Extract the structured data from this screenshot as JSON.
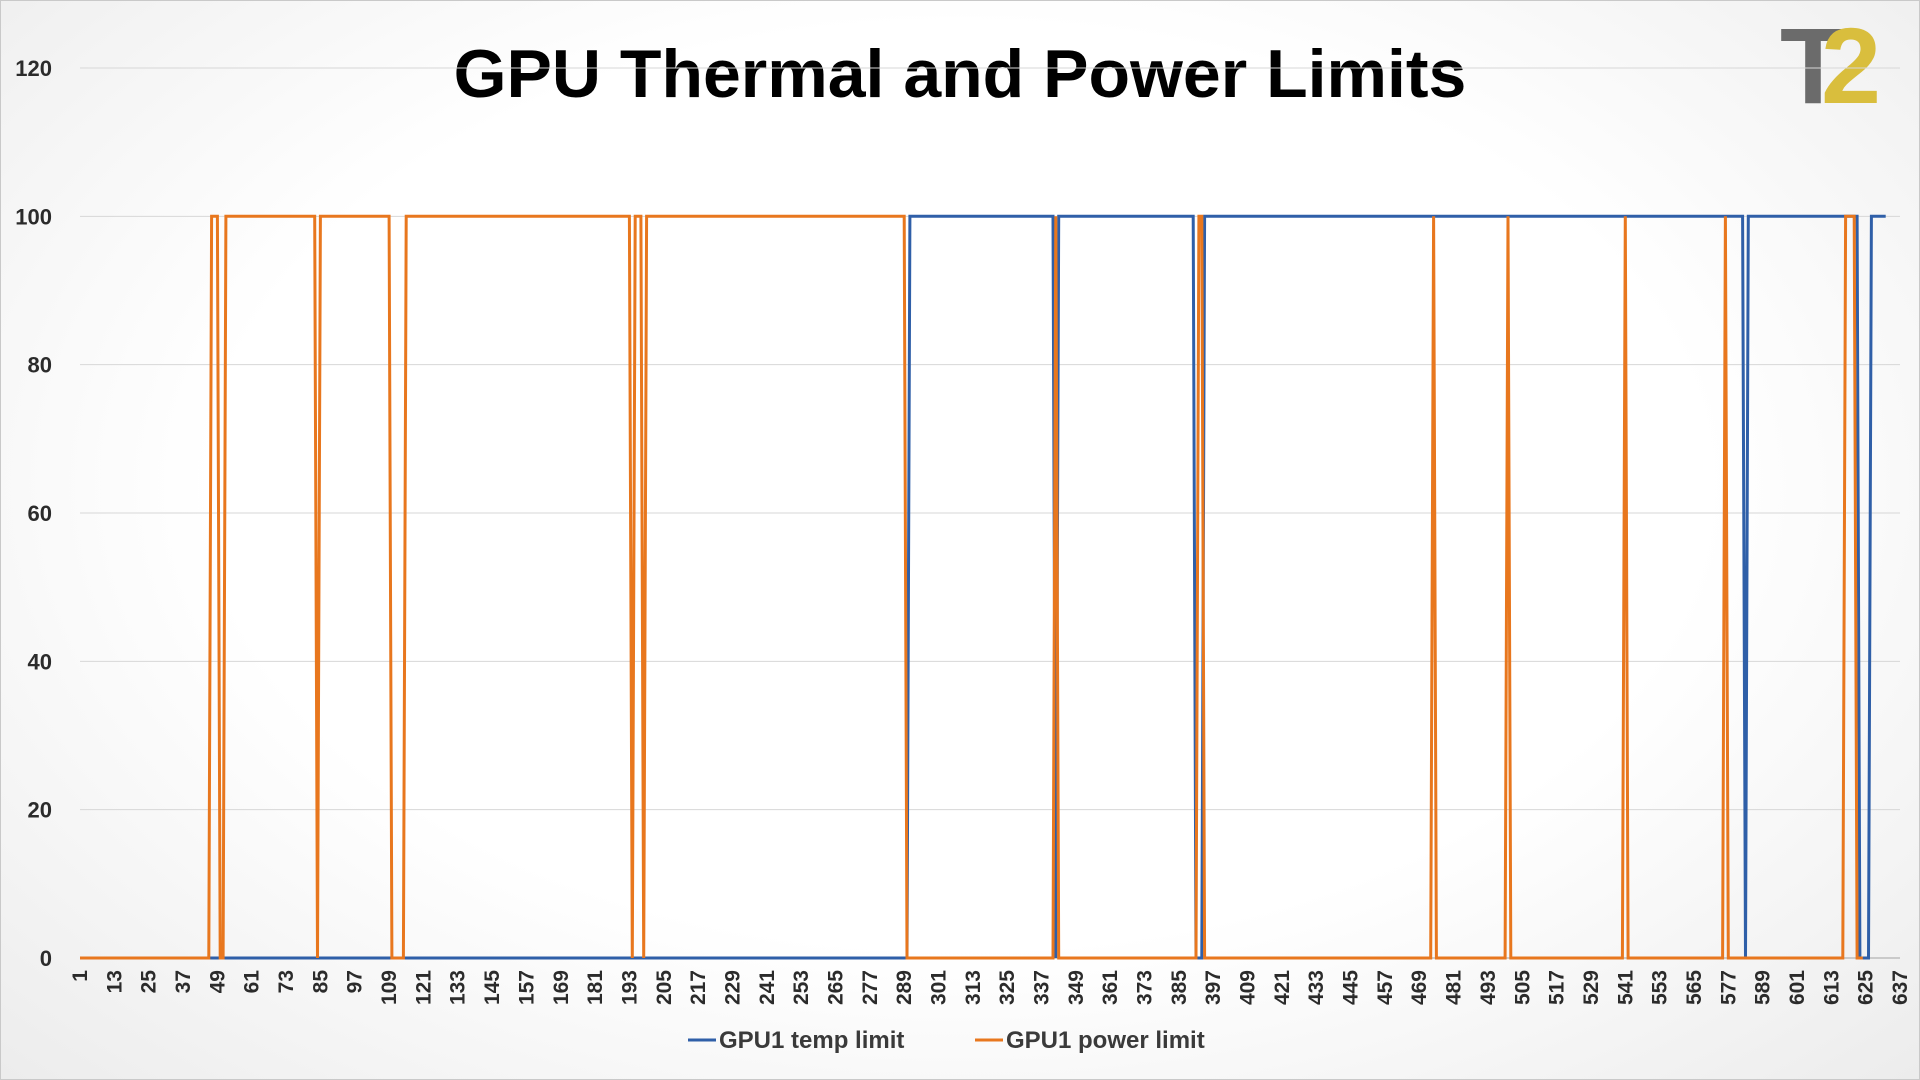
{
  "chart_data": {
    "type": "line",
    "title": "GPU Thermal and Power Limits",
    "xlabel": "",
    "ylabel": "",
    "ylim": [
      0,
      120
    ],
    "yticks": [
      0,
      20,
      40,
      60,
      80,
      100,
      120
    ],
    "xlim": [
      1,
      637
    ],
    "xticks": [
      1,
      13,
      25,
      37,
      49,
      61,
      73,
      85,
      97,
      109,
      121,
      133,
      145,
      157,
      169,
      181,
      193,
      205,
      217,
      229,
      241,
      253,
      265,
      277,
      289,
      301,
      313,
      325,
      337,
      349,
      361,
      373,
      385,
      397,
      409,
      421,
      433,
      445,
      457,
      469,
      481,
      493,
      505,
      517,
      529,
      541,
      553,
      565,
      577,
      589,
      601,
      613,
      625,
      637
    ],
    "grid": "horizontal",
    "legend_position": "bottom",
    "series": [
      {
        "name": "GPU1 temp limit",
        "color": "#2f5fa8",
        "points": [
          [
            1,
            0
          ],
          [
            290,
            0
          ],
          [
            291,
            100
          ],
          [
            341,
            100
          ],
          [
            342,
            0
          ],
          [
            343,
            100
          ],
          [
            390,
            100
          ],
          [
            391,
            0
          ],
          [
            393,
            0
          ],
          [
            394,
            100
          ],
          [
            582,
            100
          ],
          [
            583,
            0
          ],
          [
            584,
            100
          ],
          [
            622,
            100
          ],
          [
            623,
            0
          ],
          [
            626,
            0
          ],
          [
            627,
            100
          ],
          [
            632,
            100
          ]
        ]
      },
      {
        "name": "GPU1 power limit",
        "color": "#e8771e",
        "points": [
          [
            1,
            0
          ],
          [
            46,
            0
          ],
          [
            47,
            100
          ],
          [
            49,
            100
          ],
          [
            50,
            0
          ],
          [
            51,
            0
          ],
          [
            52,
            100
          ],
          [
            83,
            100
          ],
          [
            84,
            0
          ],
          [
            85,
            100
          ],
          [
            109,
            100
          ],
          [
            110,
            0
          ],
          [
            114,
            0
          ],
          [
            115,
            100
          ],
          [
            193,
            100
          ],
          [
            194,
            0
          ],
          [
            195,
            100
          ],
          [
            197,
            100
          ],
          [
            198,
            0
          ],
          [
            199,
            100
          ],
          [
            289,
            100
          ],
          [
            290,
            0
          ],
          [
            341,
            0
          ],
          [
            342,
            100
          ],
          [
            343,
            0
          ],
          [
            391,
            0
          ],
          [
            392,
            100
          ],
          [
            393,
            100
          ],
          [
            394,
            0
          ],
          [
            473,
            0
          ],
          [
            474,
            100
          ],
          [
            475,
            0
          ],
          [
            499,
            0
          ],
          [
            500,
            100
          ],
          [
            501,
            0
          ],
          [
            540,
            0
          ],
          [
            541,
            100
          ],
          [
            542,
            0
          ],
          [
            575,
            0
          ],
          [
            576,
            100
          ],
          [
            577,
            0
          ],
          [
            617,
            0
          ],
          [
            618,
            100
          ],
          [
            621,
            100
          ],
          [
            622,
            0
          ],
          [
            624,
            0
          ]
        ]
      }
    ]
  },
  "logo": {
    "letter": "T",
    "number": "2",
    "colors": {
      "letter": "#6b6b6b",
      "number": "#d9be3d"
    }
  },
  "colors": {
    "temp": "#2f5fa8",
    "power": "#e8771e",
    "grid": "#d7d7d7"
  }
}
